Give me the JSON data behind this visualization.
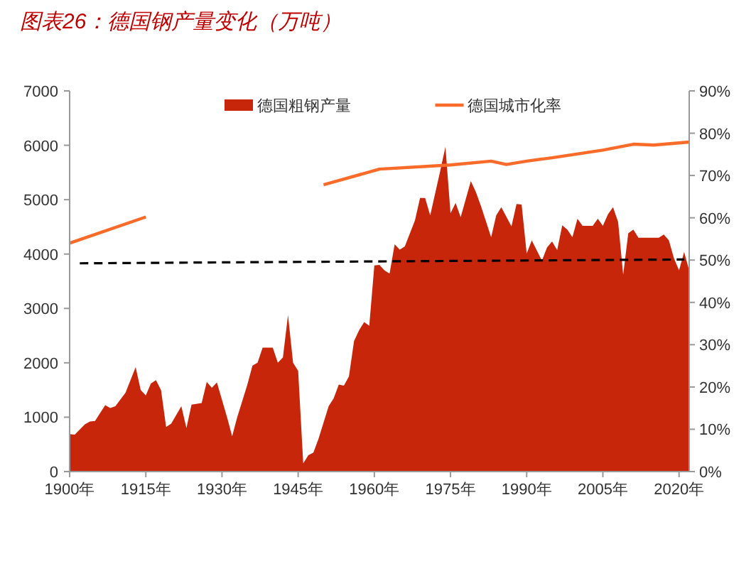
{
  "chart_data": {
    "type": "area",
    "title": "图表26：德国钢产量变化（万吨）",
    "xlim": [
      1900,
      2022
    ],
    "xticks": [
      {
        "value": 1900,
        "label": "1900年"
      },
      {
        "value": 1915,
        "label": "1915年"
      },
      {
        "value": 1930,
        "label": "1930年"
      },
      {
        "value": 1945,
        "label": "1945年"
      },
      {
        "value": 1960,
        "label": "1960年"
      },
      {
        "value": 1975,
        "label": "1975年"
      },
      {
        "value": 1990,
        "label": "1990年"
      },
      {
        "value": 2005,
        "label": "2005年"
      },
      {
        "value": 2020,
        "label": "2020年"
      }
    ],
    "ylim": [
      0,
      7000
    ],
    "yticks": [
      0,
      1000,
      2000,
      3000,
      4000,
      5000,
      6000,
      7000
    ],
    "y2lim": [
      0,
      90
    ],
    "y2ticks": [
      {
        "value": 0,
        "label": "0%"
      },
      {
        "value": 10,
        "label": "10%"
      },
      {
        "value": 20,
        "label": "20%"
      },
      {
        "value": 30,
        "label": "30%"
      },
      {
        "value": 40,
        "label": "40%"
      },
      {
        "value": 50,
        "label": "50%"
      },
      {
        "value": 60,
        "label": "60%"
      },
      {
        "value": 70,
        "label": "70%"
      },
      {
        "value": 80,
        "label": "80%"
      },
      {
        "value": 90,
        "label": "90%"
      }
    ],
    "legend": "top",
    "grid": false,
    "series": [
      {
        "name": "德国粗钢产量",
        "color": "#c8260a",
        "x": [
          1900,
          1901,
          1903,
          1904,
          1905,
          1907,
          1908,
          1909,
          1911,
          1913,
          1914,
          1915,
          1916,
          1917,
          1918,
          1919,
          1920,
          1922,
          1923,
          1924,
          1926,
          1927,
          1928,
          1929,
          1931,
          1932,
          1933,
          1935,
          1936,
          1937,
          1938,
          1940,
          1941,
          1942,
          1943,
          1944,
          1945,
          1946,
          1947,
          1948,
          1949,
          1951,
          1952,
          1953,
          1954,
          1955,
          1956,
          1957,
          1958,
          1959,
          1960,
          1961,
          1962,
          1963,
          1964,
          1965,
          1966,
          1968,
          1969,
          1970,
          1971,
          1973,
          1974,
          1975,
          1976,
          1977,
          1979,
          1980,
          1981,
          1983,
          1984,
          1985,
          1987,
          1988,
          1989,
          1990,
          1991,
          1993,
          1994,
          1995,
          1996,
          1997,
          1998,
          1999,
          2000,
          2001,
          2003,
          2004,
          2005,
          2006,
          2007,
          2008,
          2009,
          2010,
          2011,
          2012,
          2014,
          2016,
          2017,
          2018,
          2019,
          2020,
          2021,
          2022
        ],
        "values": [
          690,
          680,
          870,
          920,
          930,
          1220,
          1170,
          1200,
          1450,
          1920,
          1500,
          1400,
          1620,
          1680,
          1500,
          820,
          880,
          1200,
          800,
          1230,
          1260,
          1650,
          1540,
          1640,
          1000,
          650,
          1000,
          1600,
          1950,
          2000,
          2280,
          2280,
          2000,
          2100,
          2880,
          2000,
          1850,
          150,
          300,
          350,
          600,
          1200,
          1350,
          1600,
          1580,
          1750,
          2400,
          2600,
          2750,
          2680,
          3790,
          3800,
          3700,
          3640,
          4180,
          4080,
          4140,
          4620,
          5030,
          5030,
          4710,
          5540,
          5970,
          4750,
          4940,
          4680,
          5340,
          5140,
          4880,
          4310,
          4710,
          4860,
          4510,
          4920,
          4910,
          4010,
          4250,
          3880,
          4120,
          4230,
          4070,
          4530,
          4450,
          4310,
          4650,
          4520,
          4520,
          4650,
          4520,
          4730,
          4860,
          4590,
          3620,
          4380,
          4450,
          4300,
          4300,
          4300,
          4360,
          4250,
          3920,
          3700,
          4040,
          3700
        ]
      },
      {
        "name": "德国城市化率",
        "type": "line",
        "axis": "y2",
        "color": "#fa6a28",
        "x": [
          1900,
          1915,
          1932,
          1950,
          1961,
          1975,
          1983,
          1986,
          1990,
          1995,
          2005,
          2011,
          2015,
          2022
        ],
        "values": [
          54.0,
          60.2,
          null,
          67.8,
          71.5,
          72.5,
          73.4,
          72.6,
          73.4,
          74.2,
          76.0,
          77.4,
          77.2,
          77.9
        ]
      },
      {
        "type": "line",
        "color": "#000000",
        "line_style": "dashed",
        "x": [
          1902,
          2021
        ],
        "values": [
          3830,
          3900
        ]
      }
    ]
  }
}
